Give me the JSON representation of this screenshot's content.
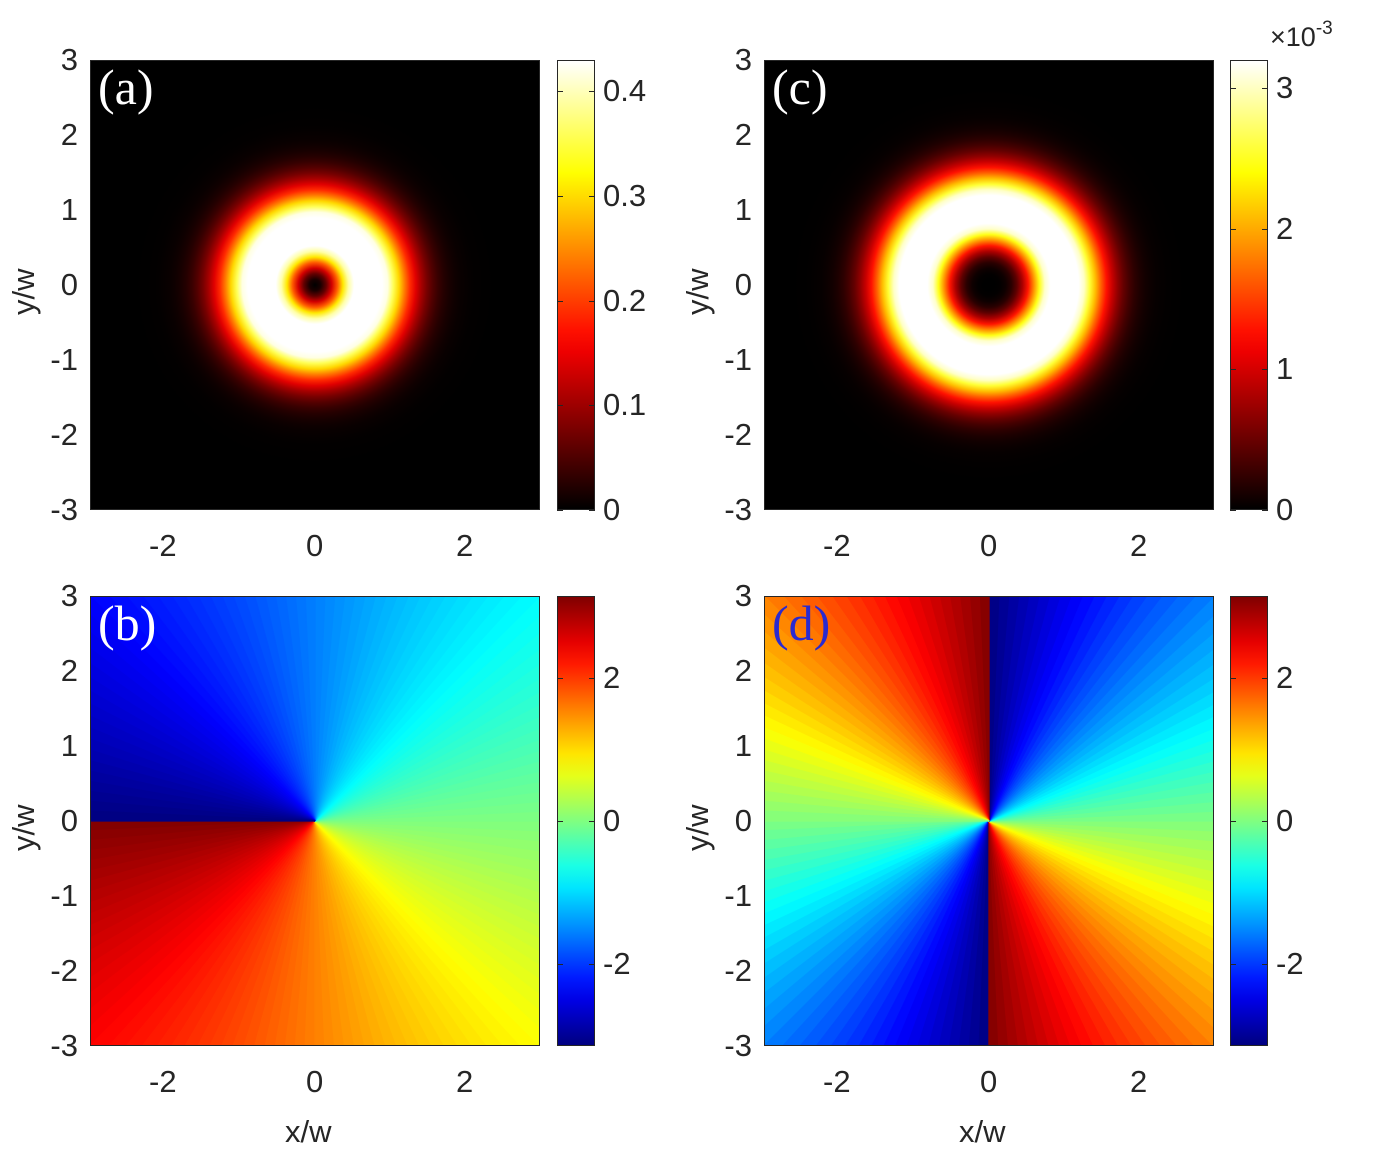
{
  "chart_data": [
    {
      "type": "heatmap",
      "panel_label": "(a)",
      "quantity": "intensity",
      "ylabel": "y/w",
      "xlabel": "",
      "x_ticks": [
        "-2",
        "0",
        "2"
      ],
      "y_ticks": [
        "3",
        "2",
        "1",
        "0",
        "-1",
        "-2",
        "-3"
      ],
      "xlim": [
        -3,
        3
      ],
      "ylim": [
        -3,
        3
      ],
      "colormap": "hot",
      "clim": [
        0,
        0.43
      ],
      "colorbar_ticks": [
        "0.4",
        "0.3",
        "0.2",
        "0.1",
        "0"
      ],
      "colorbar_values": [
        0.4,
        0.3,
        0.2,
        0.1,
        0
      ],
      "ring_radius": 0.71,
      "label_color": "#ffffff"
    },
    {
      "type": "heatmap",
      "panel_label": "(b)",
      "quantity": "phase",
      "ylabel": "y/w",
      "xlabel": "x/w",
      "x_ticks": [
        "-2",
        "0",
        "2"
      ],
      "y_ticks": [
        "3",
        "2",
        "1",
        "0",
        "-1",
        "-2",
        "-3"
      ],
      "xlim": [
        -3,
        3
      ],
      "ylim": [
        -3,
        3
      ],
      "colormap": "jet",
      "clim": [
        -3.1416,
        3.1416
      ],
      "colorbar_ticks": [
        "2",
        "0",
        "-2"
      ],
      "colorbar_values": [
        2,
        0,
        -2
      ],
      "topological_charge": -1,
      "label_color": "#ffffff"
    },
    {
      "type": "heatmap",
      "panel_label": "(c)",
      "quantity": "intensity",
      "ylabel": "y/w",
      "xlabel": "",
      "x_ticks": [
        "-2",
        "0",
        "2"
      ],
      "y_ticks": [
        "3",
        "2",
        "1",
        "0",
        "-1",
        "-2",
        "-3"
      ],
      "xlim": [
        -3,
        3
      ],
      "ylim": [
        -3,
        3
      ],
      "colormap": "hot",
      "clim": [
        0,
        0.0032
      ],
      "colorbar_ticks": [
        "3",
        "2",
        "1",
        "0"
      ],
      "colorbar_values": [
        3,
        2,
        1,
        0
      ],
      "colorbar_exponent_prefix": "×10",
      "colorbar_exponent": "-3",
      "ring_radius": 1.0,
      "label_color": "#ffffff"
    },
    {
      "type": "heatmap",
      "panel_label": "(d)",
      "quantity": "phase",
      "ylabel": "y/w",
      "xlabel": "x/w",
      "x_ticks": [
        "-2",
        "0",
        "2"
      ],
      "y_ticks": [
        "3",
        "2",
        "1",
        "0",
        "-1",
        "-2",
        "-3"
      ],
      "xlim": [
        -3,
        3
      ],
      "ylim": [
        -3,
        3
      ],
      "colormap": "jet",
      "clim": [
        -3.1416,
        3.1416
      ],
      "colorbar_ticks": [
        "2",
        "0",
        "-2"
      ],
      "colorbar_values": [
        2,
        0,
        -2
      ],
      "topological_charge": -2,
      "label_color": "#2a2ad0"
    }
  ]
}
